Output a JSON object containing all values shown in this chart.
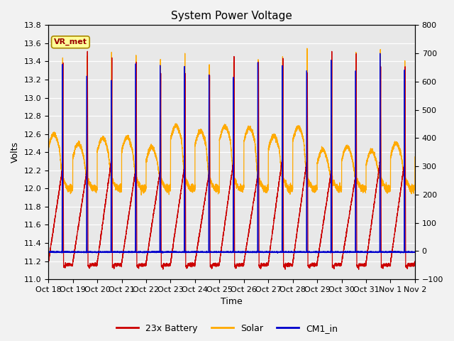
{
  "title": "System Power Voltage",
  "xlabel": "Time",
  "ylabel": "Volts",
  "ylim": [
    11.0,
    13.8
  ],
  "ylim2": [
    -100,
    800
  ],
  "yticks": [
    11.0,
    11.2,
    11.4,
    11.6,
    11.8,
    12.0,
    12.2,
    12.4,
    12.6,
    12.8,
    13.0,
    13.2,
    13.4,
    13.6,
    13.8
  ],
  "yticks2": [
    -100,
    0,
    100,
    200,
    300,
    400,
    500,
    600,
    700,
    800
  ],
  "xtick_labels": [
    "Oct 18",
    "Oct 19",
    "Oct 20",
    "Oct 21",
    "Oct 22",
    "Oct 23",
    "Oct 24",
    "Oct 25",
    "Oct 26",
    "Oct 27",
    "Oct 28",
    "Oct 29",
    "Oct 30",
    "Oct 31",
    "Nov 1",
    "Nov 2"
  ],
  "colors": {
    "battery": "#cc0000",
    "solar": "#ffaa00",
    "cm1": "#0000cc"
  },
  "legend_labels": [
    "23x Battery",
    "Solar",
    "CM1_in"
  ],
  "annotation_text": "VR_met",
  "annotation_box_facecolor": "#ffff99",
  "annotation_box_edgecolor": "#aa8800",
  "fig_facecolor": "#f2f2f2",
  "axes_facecolor": "#e8e8e8",
  "grid_color": "#ffffff",
  "num_days": 15,
  "title_fontsize": 11,
  "label_fontsize": 9,
  "tick_fontsize": 8
}
